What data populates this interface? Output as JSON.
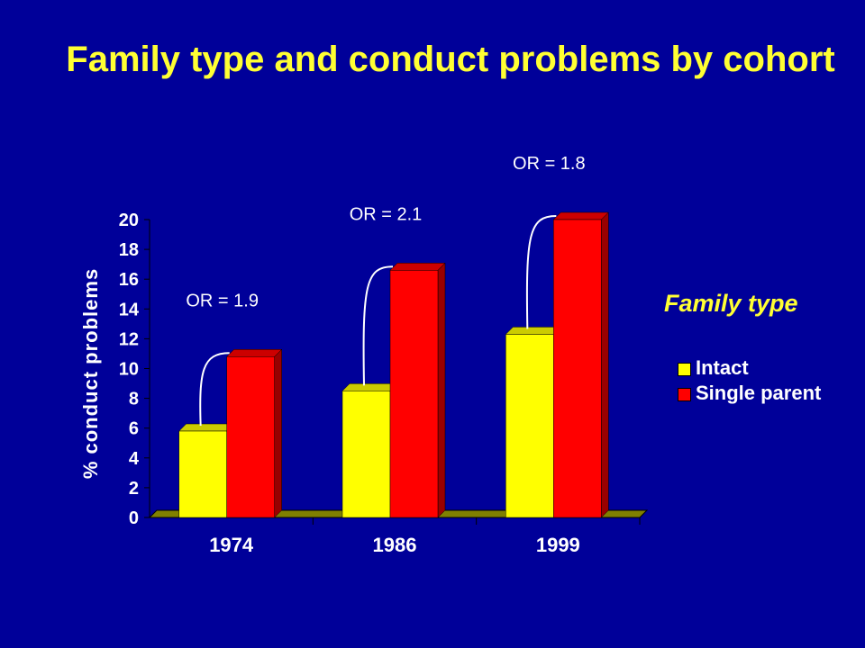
{
  "title": "Family type and conduct problems by cohort",
  "colors": {
    "background": "#000099",
    "title": "#ffff33",
    "intact": "#ffff00",
    "single_parent": "#ff0000",
    "text": "#ffffff"
  },
  "legend": {
    "title": "Family type",
    "items": [
      "Intact",
      "Single parent"
    ]
  },
  "chart_data": {
    "type": "bar",
    "categories": [
      "1974",
      "1986",
      "1999"
    ],
    "series": [
      {
        "name": "Intact",
        "values": [
          5.8,
          8.5,
          12.3
        ]
      },
      {
        "name": "Single parent",
        "values": [
          10.8,
          16.6,
          20.0
        ]
      }
    ],
    "ylabel": "% conduct problems",
    "xlabel": "",
    "ylim": [
      0,
      20
    ],
    "yticks": [
      0,
      2,
      4,
      6,
      8,
      10,
      12,
      14,
      16,
      18,
      20
    ],
    "annotations": [
      "OR = 1.9",
      "OR = 2.1",
      "OR = 1.8"
    ],
    "legend_position": "right",
    "grid": false
  }
}
